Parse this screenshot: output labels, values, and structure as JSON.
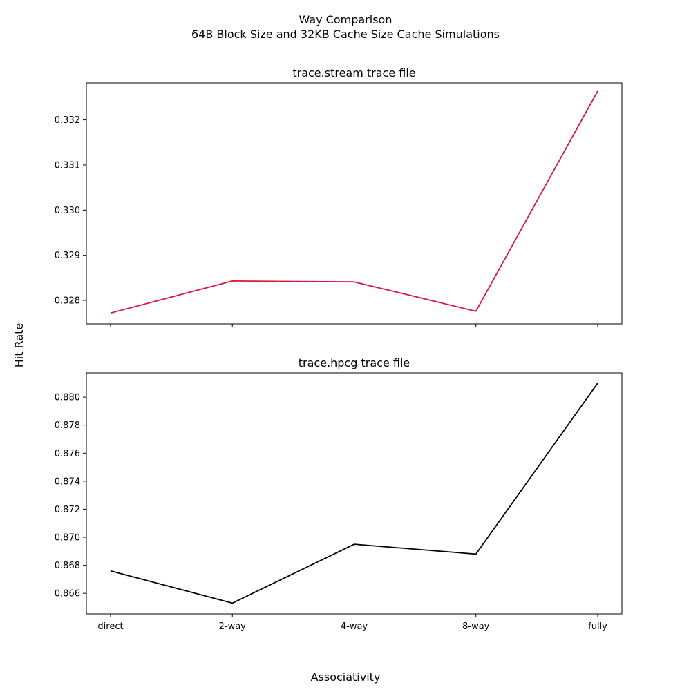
{
  "figure": {
    "title": "Way Comparison",
    "subtitle": "64B Block Size and 32KB Cache Size Cache Simulations",
    "xlabel": "Associativity",
    "ylabel": "Hit Rate"
  },
  "chart_data": [
    {
      "type": "line",
      "title": "trace.stream trace file",
      "categories": [
        "direct",
        "2-way",
        "4-way",
        "8-way",
        "fully"
      ],
      "values": [
        0.32772,
        0.32843,
        0.32841,
        0.32776,
        0.33264
      ],
      "color": "#dc143c",
      "ylim": [
        0.32748,
        0.33282
      ],
      "yticks": [
        "0.328",
        "0.329",
        "0.330",
        "0.331",
        "0.332"
      ],
      "show_xtick_labels": false,
      "grid": false
    },
    {
      "type": "line",
      "title": "trace.hpcg trace file",
      "categories": [
        "direct",
        "2-way",
        "4-way",
        "8-way",
        "fully"
      ],
      "values": [
        0.8676,
        0.8653,
        0.8695,
        0.8688,
        0.881
      ],
      "color": "#000000",
      "ylim": [
        0.86453,
        0.88173
      ],
      "yticks": [
        "0.866",
        "0.868",
        "0.870",
        "0.872",
        "0.874",
        "0.876",
        "0.878",
        "0.880"
      ],
      "show_xtick_labels": true,
      "grid": false
    }
  ]
}
